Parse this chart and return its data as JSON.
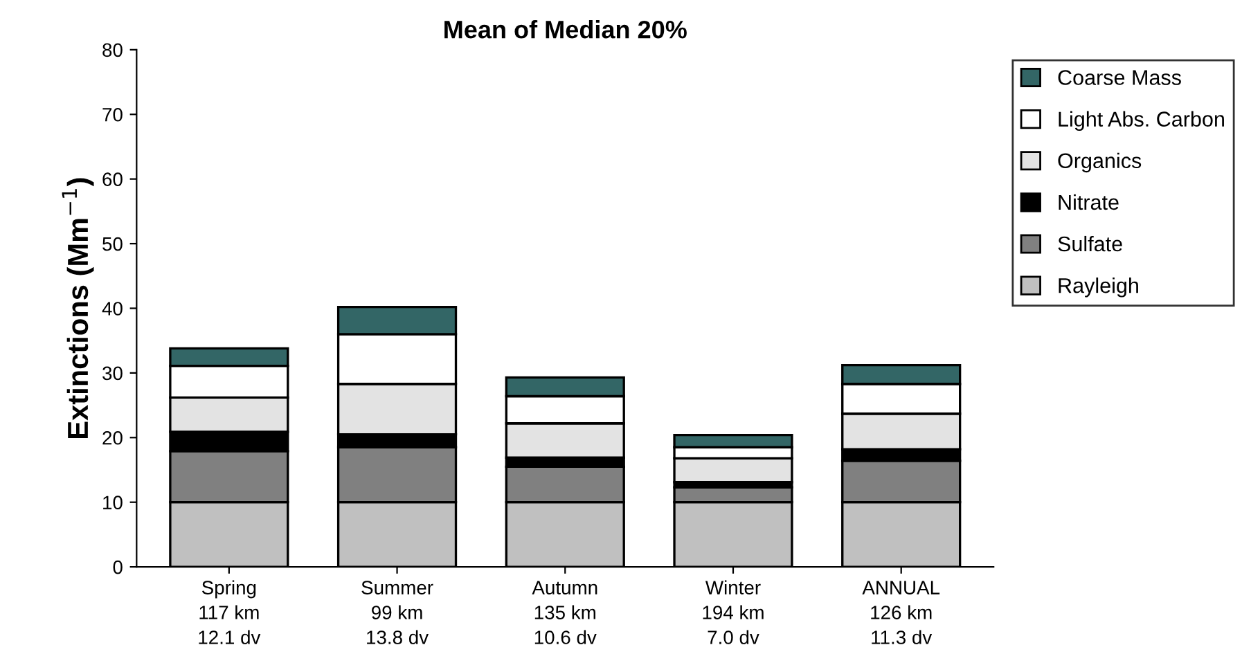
{
  "chart_data": {
    "type": "bar",
    "title": "Mean of Median 20%",
    "ylabel": "Extinctions (Mm$^{−1}$)",
    "categories": [
      "Spring\n117 km\n12.1 dv",
      "Summer\n99 km\n13.8 dv",
      "Autumn\n135 km\n10.6 dv",
      "Winter\n194 km\n7.0 dv",
      "ANNUAL\n126 km\n11.3 dv"
    ],
    "stacked": true,
    "ylim": [
      0,
      80
    ],
    "yticks": [
      0,
      10,
      20,
      30,
      40,
      50,
      60,
      70,
      80
    ],
    "grid": false,
    "legend": "right",
    "series": [
      {
        "name": "Rayleigh",
        "color": "#c0c0c0",
        "values": [
          10,
          10,
          10,
          10,
          10
        ]
      },
      {
        "name": "Sulfate",
        "color": "#808080",
        "values": [
          7.9,
          8.5,
          5.5,
          2.3,
          6.4
        ]
      },
      {
        "name": "Nitrate",
        "color": "#000000",
        "values": [
          3.0,
          2.0,
          1.4,
          0.8,
          1.8
        ]
      },
      {
        "name": "Organics",
        "color": "#e3e3e3",
        "values": [
          5.3,
          7.8,
          5.3,
          3.7,
          5.5
        ]
      },
      {
        "name": "Light Abs. Carbon",
        "color": "#ffffff",
        "values": [
          4.9,
          7.7,
          4.2,
          1.7,
          4.6
        ]
      },
      {
        "name": "Coarse Mass",
        "color": "#336666",
        "values": [
          2.7,
          4.2,
          2.9,
          1.9,
          2.9
        ]
      }
    ]
  }
}
